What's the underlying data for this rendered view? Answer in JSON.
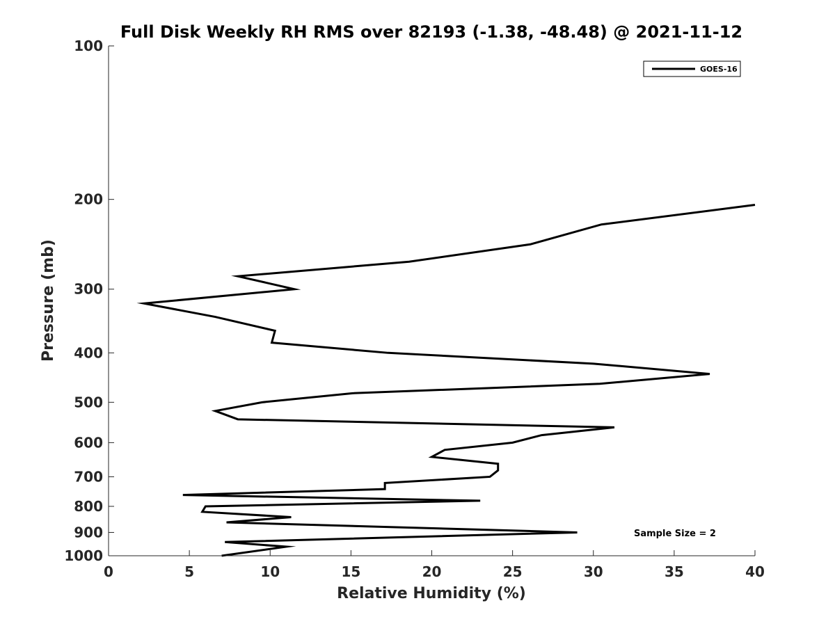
{
  "chart_data": {
    "type": "line",
    "title": "Full Disk Weekly RH RMS over 82193 (-1.38, -48.48) @ 2021-11-12",
    "xlabel": "Relative Humidity (%)",
    "ylabel": "Pressure (mb)",
    "xlim": [
      0,
      40
    ],
    "ylim": [
      100,
      1000
    ],
    "yscale": "log",
    "yreversed": true,
    "grid": false,
    "legend_position": "top-right",
    "x_ticks": [
      0,
      5,
      10,
      15,
      20,
      25,
      30,
      35,
      40
    ],
    "y_ticks": [
      100,
      200,
      300,
      400,
      500,
      600,
      700,
      800,
      900,
      1000
    ],
    "series": [
      {
        "name": "GOES-16",
        "color": "#000000",
        "points": [
          {
            "x": 40.0,
            "y": 205
          },
          {
            "x": 30.5,
            "y": 224
          },
          {
            "x": 26.1,
            "y": 245
          },
          {
            "x": 18.6,
            "y": 265
          },
          {
            "x": 8.0,
            "y": 283
          },
          {
            "x": 11.5,
            "y": 300
          },
          {
            "x": 2.2,
            "y": 320
          },
          {
            "x": 6.6,
            "y": 340
          },
          {
            "x": 10.3,
            "y": 362
          },
          {
            "x": 10.1,
            "y": 382
          },
          {
            "x": 17.3,
            "y": 400
          },
          {
            "x": 30.0,
            "y": 420
          },
          {
            "x": 37.2,
            "y": 440
          },
          {
            "x": 30.4,
            "y": 460
          },
          {
            "x": 15.1,
            "y": 480
          },
          {
            "x": 9.5,
            "y": 500
          },
          {
            "x": 6.6,
            "y": 520
          },
          {
            "x": 8.0,
            "y": 540
          },
          {
            "x": 31.3,
            "y": 560
          },
          {
            "x": 26.8,
            "y": 580
          },
          {
            "x": 25.0,
            "y": 600
          },
          {
            "x": 20.8,
            "y": 620
          },
          {
            "x": 20.0,
            "y": 640
          },
          {
            "x": 24.1,
            "y": 660
          },
          {
            "x": 24.1,
            "y": 680
          },
          {
            "x": 23.6,
            "y": 700
          },
          {
            "x": 17.1,
            "y": 720
          },
          {
            "x": 17.1,
            "y": 740
          },
          {
            "x": 4.6,
            "y": 760
          },
          {
            "x": 23.0,
            "y": 780
          },
          {
            "x": 6.0,
            "y": 800
          },
          {
            "x": 5.8,
            "y": 820
          },
          {
            "x": 11.3,
            "y": 840
          },
          {
            "x": 7.3,
            "y": 860
          },
          {
            "x": 29.0,
            "y": 900
          },
          {
            "x": 7.2,
            "y": 940
          },
          {
            "x": 11.0,
            "y": 960
          },
          {
            "x": 7.0,
            "y": 1000
          }
        ]
      }
    ],
    "legend": [
      {
        "label": "GOES-16",
        "color": "#000000"
      }
    ],
    "annotations": [
      {
        "text": "Sample Size = 2",
        "position": "bottom-right"
      }
    ]
  }
}
